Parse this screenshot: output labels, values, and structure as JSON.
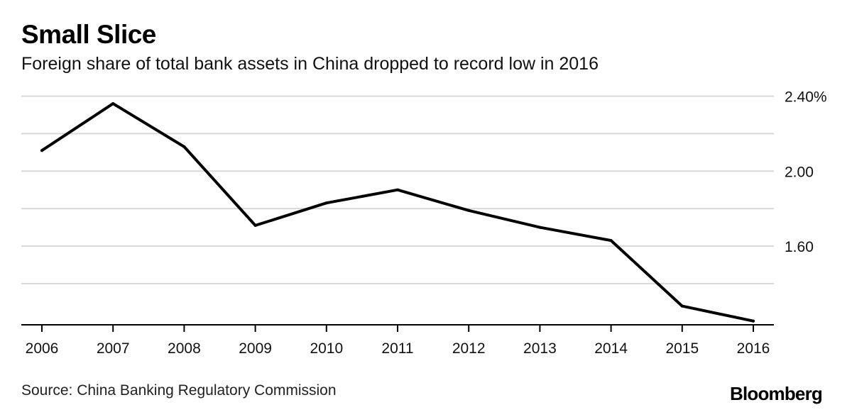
{
  "header": {
    "title": "Small Slice",
    "subtitle": "Foreign share of total bank assets in China dropped to record low in 2016"
  },
  "footer": {
    "source": "Source: China Banking Regulatory Commission",
    "logo": "Bloomberg"
  },
  "chart_data": {
    "type": "line",
    "title": "Small Slice",
    "subtitle": "Foreign share of total bank assets in China dropped to record low in 2016",
    "xlabel": "",
    "ylabel": "",
    "x": [
      "2006",
      "2007",
      "2008",
      "2009",
      "2010",
      "2011",
      "2012",
      "2013",
      "2014",
      "2015",
      "2016"
    ],
    "series": [
      {
        "name": "Foreign share of total bank assets",
        "values": [
          2.11,
          2.36,
          2.13,
          1.71,
          1.83,
          1.9,
          1.79,
          1.7,
          1.63,
          1.28,
          1.2
        ]
      }
    ],
    "ylim": [
      1.18,
      2.44
    ],
    "yticks": [
      1.4,
      1.6,
      1.8,
      2.0,
      2.2,
      2.4
    ],
    "ytick_labels": [
      "",
      "1.60",
      "",
      "2.00",
      "",
      "2.40%"
    ],
    "grid": true,
    "y_axis_side": "right",
    "line_color": "#000000",
    "grid_color": "#d9d9d9"
  }
}
